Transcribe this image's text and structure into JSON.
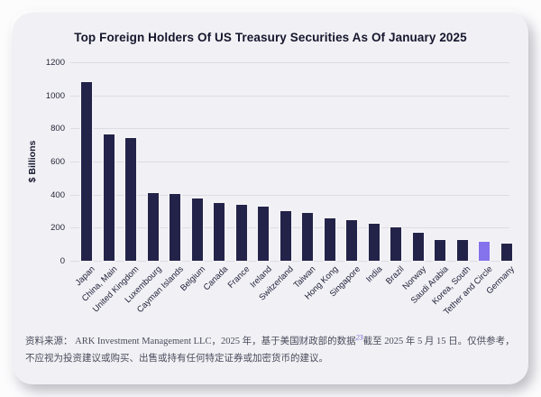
{
  "title": "Top Foreign Holders Of US Treasury Securities As Of January 2025",
  "chart_data": {
    "type": "bar",
    "title": "Top Foreign Holders Of US Treasury Securities As Of January 2025",
    "categories": [
      "Japan",
      "China, Main",
      "United Kingdom",
      "Luxembourg",
      "Cayman Islands",
      "Belgium",
      "Canada",
      "France",
      "Ireland",
      "Switzerland",
      "Taiwan",
      "Hong Kong",
      "Singapore",
      "India",
      "Brazil",
      "Norway",
      "Saudi Arabia",
      "Korea, South",
      "Tether and Circle",
      "Germany"
    ],
    "values": [
      1079,
      761,
      740,
      410,
      405,
      378,
      351,
      336,
      328,
      301,
      290,
      256,
      247,
      225,
      200,
      171,
      127,
      125,
      112,
      104
    ],
    "xlabel": "",
    "ylabel": "$ Billions",
    "ylim": [
      0,
      1200
    ],
    "yticks": [
      0,
      200,
      400,
      600,
      800,
      1000,
      1200
    ],
    "grid": true,
    "legend": false,
    "bar_color": "#23234a",
    "highlight_category": "Tether and Circle",
    "highlight_color": "#8473ec"
  },
  "footer": {
    "part1": "资料来源： ARK Investment Management LLC，2025 年，基于美国财政部的数据",
    "footnote_ref": "23",
    "part2": "截至 2025 年 5 月 15 日。仅供参考，不应视为投资建议或购买、出售或持有任何特定证券或加密货币的建议。"
  }
}
